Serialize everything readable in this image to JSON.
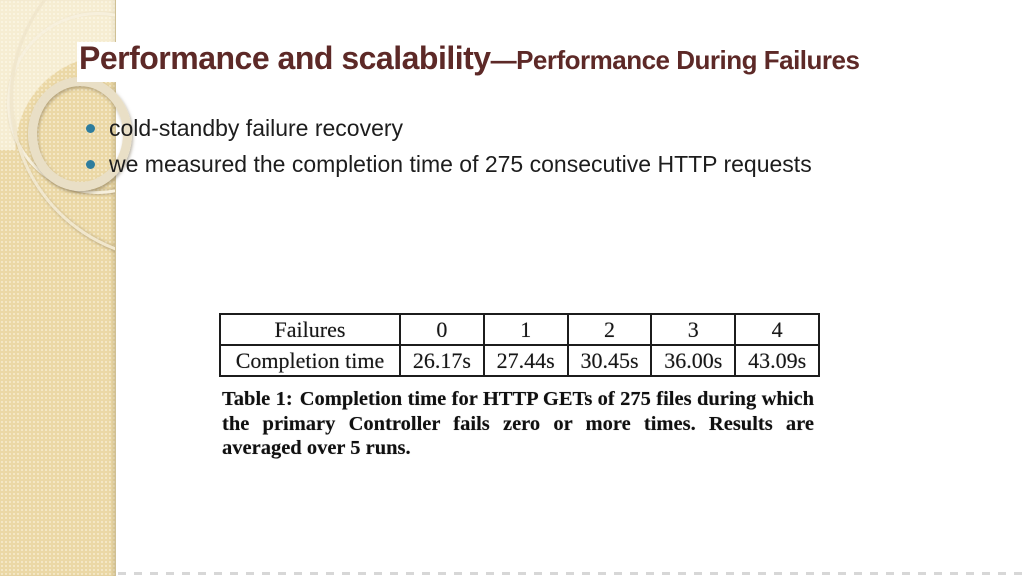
{
  "slide": {
    "title": {
      "main": "Performance and scalability",
      "dash": "—",
      "sub": "Performance During Failures"
    },
    "bullets": [
      "cold-standby failure recovery",
      "we measured the completion time of 275 consecutive HTTP requests"
    ],
    "caption": {
      "label": "Table 1:",
      "text": "Completion time for HTTP GETs of 275 files during which the primary Controller fails zero or more times. Results are averaged over 5 runs."
    },
    "colors": {
      "title_maroon": "#5d2927",
      "bullet_teal": "#2e7d9d",
      "sidebar_beige": "#ebd8a6"
    }
  },
  "chart_data": {
    "type": "table",
    "title": "Table 1",
    "columns": [
      "Failures",
      "0",
      "1",
      "2",
      "3",
      "4"
    ],
    "rows": [
      [
        "Completion time",
        "26.17s",
        "27.44s",
        "30.45s",
        "36.00s",
        "43.09s"
      ]
    ]
  }
}
